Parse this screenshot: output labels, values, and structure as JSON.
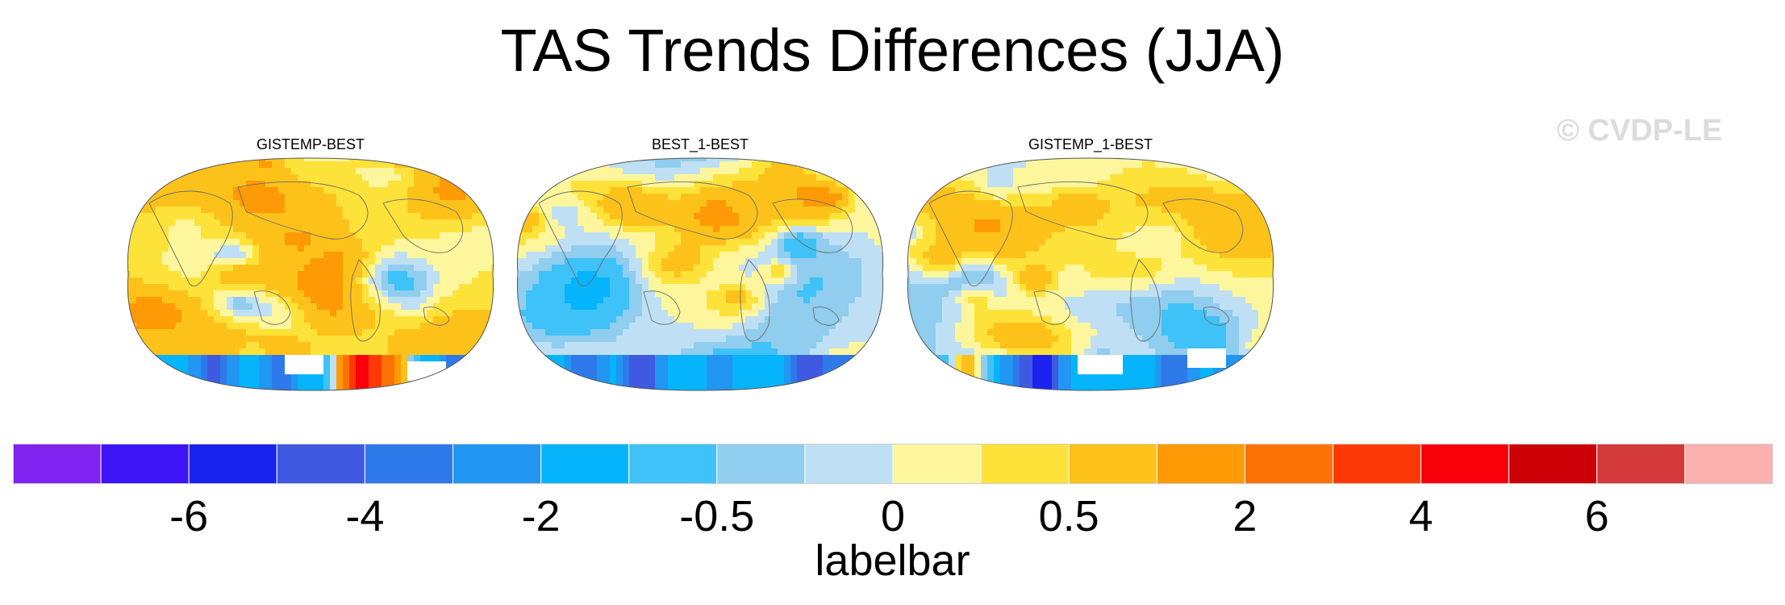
{
  "title": "TAS Trends Differences (JJA)",
  "watermark": "© CVDP-LE",
  "panels": [
    {
      "label": "GISTEMP-BEST",
      "pattern": "gistemp-best"
    },
    {
      "label": "BEST_1-BEST",
      "pattern": "best1-best"
    },
    {
      "label": "GISTEMP_1-BEST",
      "pattern": "gistemp1-best"
    }
  ],
  "labelbar": {
    "title": "labelbar",
    "colors": [
      "#8022f0",
      "#3c14f5",
      "#1a22f0",
      "#3f5ae0",
      "#2f7aea",
      "#2196f3",
      "#05b4fb",
      "#3fc2f7",
      "#90cdee",
      "#bfe0f4",
      "#fdf69c",
      "#fde23a",
      "#fdc21a",
      "#fd9a05",
      "#fd7205",
      "#fd3a05",
      "#f8000a",
      "#cc0006",
      "#d43a3c",
      "#fcb0b0"
    ],
    "tick_labels": [
      "-6",
      "-4",
      "-2",
      "-0.5",
      "0",
      "0.5",
      "2",
      "4",
      "6"
    ]
  }
}
